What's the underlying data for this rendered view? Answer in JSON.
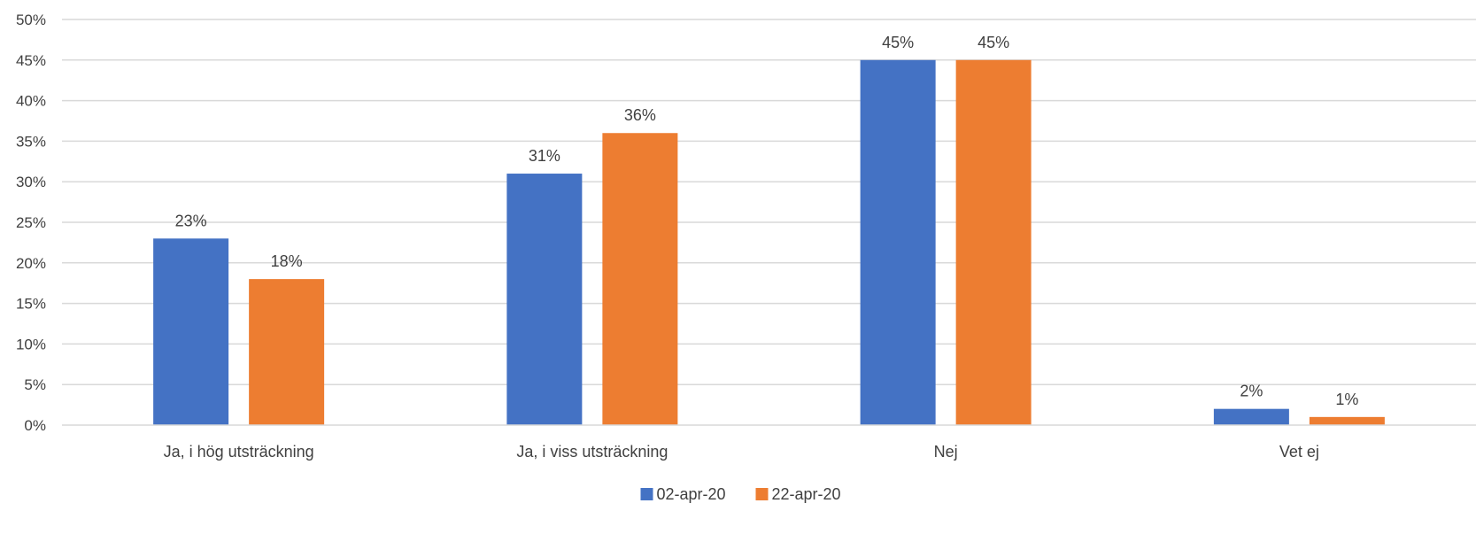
{
  "chart_data": {
    "type": "bar",
    "title": "",
    "xlabel": "",
    "ylabel": "",
    "categories": [
      "Ja, i hög utsträckning",
      "Ja, i viss utsträckning",
      "Nej",
      "Vet ej"
    ],
    "series": [
      {
        "name": "02-apr-20",
        "values": [
          23,
          31,
          45,
          2
        ],
        "color": "#4472C4"
      },
      {
        "name": "22-apr-20",
        "values": [
          18,
          36,
          45,
          1
        ],
        "color": "#ED7D31"
      }
    ],
    "ylim": [
      0,
      50
    ],
    "yticks": [
      0,
      5,
      10,
      15,
      20,
      25,
      30,
      35,
      40,
      45,
      50
    ],
    "y_tick_format": "%",
    "data_labels": true,
    "grid": true,
    "legend": "bottom-center"
  }
}
